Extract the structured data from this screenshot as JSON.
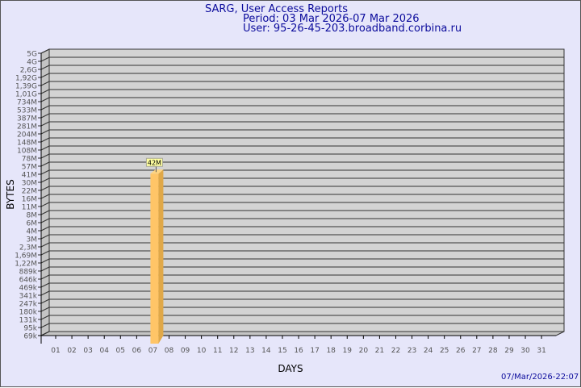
{
  "header": {
    "title": "SARG, User Access Reports",
    "period": "Period: 03 Mar 2026-07 Mar 2026",
    "user": "User: 95-26-45-203.broadband.corbina.ru"
  },
  "footer": {
    "timestamp": "07/Mar/2026-22:07"
  },
  "colors": {
    "background": "#e6e6fa",
    "wall": "#d3d3d3",
    "bar_front": "#ffc567",
    "bar_side": "#e0a848",
    "title": "#0b0b9c"
  },
  "chart_data": {
    "type": "bar",
    "xlabel": "DAYS",
    "ylabel": "BYTES",
    "y_scale": "log",
    "grid": true,
    "y_ticks": [
      "5G",
      "4G",
      "2,6G",
      "1,92G",
      "1,39G",
      "1,01G",
      "734M",
      "533M",
      "387M",
      "281M",
      "204M",
      "148M",
      "108M",
      "78M",
      "57M",
      "41M",
      "30M",
      "22M",
      "16M",
      "11M",
      "8M",
      "6M",
      "4M",
      "3M",
      "2,3M",
      "1,69M",
      "1,22M",
      "889k",
      "646k",
      "469k",
      "341k",
      "247k",
      "180k",
      "131k",
      "95k",
      "69k"
    ],
    "y_tick_values": [
      5000000000.0,
      4000000000.0,
      2600000000.0,
      1920000000.0,
      1390000000.0,
      1010000000.0,
      734000000.0,
      533000000.0,
      387000000.0,
      281000000.0,
      204000000.0,
      148000000.0,
      108000000.0,
      78000000.0,
      57000000.0,
      41000000.0,
      30000000.0,
      22000000.0,
      16000000.0,
      11000000.0,
      8000000.0,
      6000000.0,
      4000000.0,
      3000000.0,
      2300000.0,
      1690000.0,
      1220000.0,
      889000.0,
      646000.0,
      469000.0,
      341000.0,
      247000.0,
      180000.0,
      131000.0,
      95000.0,
      69000.0
    ],
    "categories": [
      "01",
      "02",
      "03",
      "04",
      "05",
      "06",
      "07",
      "08",
      "09",
      "10",
      "11",
      "12",
      "13",
      "14",
      "15",
      "16",
      "17",
      "18",
      "19",
      "20",
      "21",
      "22",
      "23",
      "24",
      "25",
      "26",
      "27",
      "28",
      "29",
      "30",
      "31"
    ],
    "bars": [
      {
        "day": "07",
        "value": 42000000,
        "label": "42M"
      }
    ]
  }
}
